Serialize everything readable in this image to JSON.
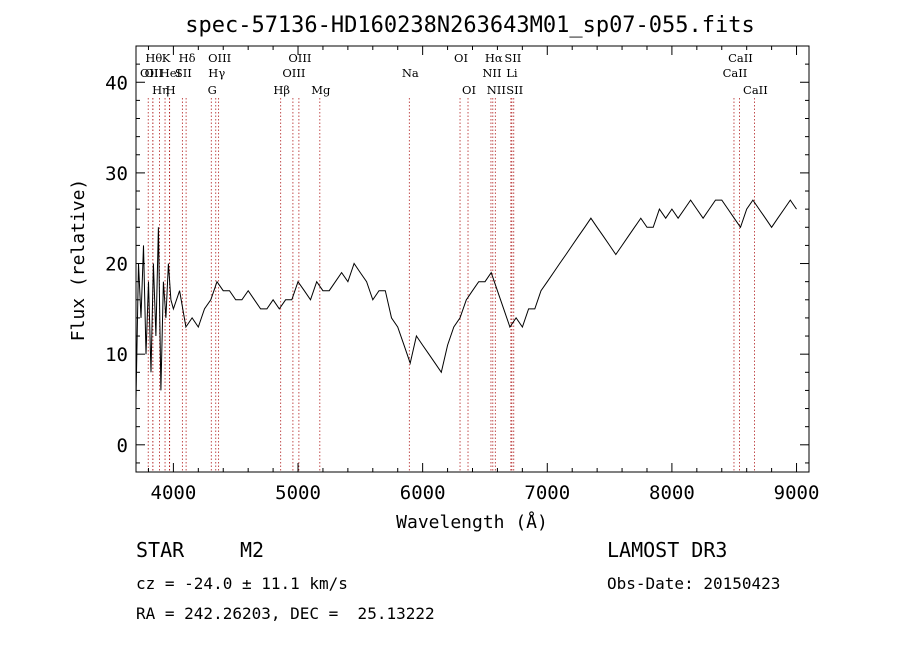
{
  "title": "spec-57136-HD160238N263643M01_sp07-055.fits",
  "info": {
    "object_class": "STAR",
    "subclass": "M2",
    "survey": "LAMOST DR3",
    "cz": "cz = -24.0 ± 11.1 km/s",
    "obs_date": "Obs-Date: 20150423",
    "coords": "RA = 242.26203, DEC =  25.13222"
  },
  "chart_data": {
    "type": "line",
    "title": "spec-57136-HD160238N263643M01_sp07-055.fits",
    "xlabel": "Wavelength (Å)",
    "ylabel": "Flux (relative)",
    "xlim": [
      3700,
      9100
    ],
    "ylim": [
      -3,
      44
    ],
    "xticks": [
      4000,
      5000,
      6000,
      7000,
      8000,
      9000
    ],
    "yticks": [
      0,
      10,
      20,
      30,
      40
    ],
    "grid": false,
    "legend": "none",
    "line_color": "#000000",
    "marker_color": "#b22222",
    "series": [
      {
        "x": [
          3700,
          3720,
          3740,
          3760,
          3780,
          3800,
          3820,
          3840,
          3860,
          3880,
          3900,
          3920,
          3940,
          3960,
          3980,
          4000,
          4050,
          4100,
          4150,
          4200,
          4250,
          4300,
          4350,
          4400,
          4450,
          4500,
          4550,
          4600,
          4650,
          4700,
          4750,
          4800,
          4850,
          4900,
          4950,
          5000,
          5050,
          5100,
          5150,
          5200,
          5250,
          5300,
          5350,
          5400,
          5450,
          5500,
          5550,
          5600,
          5650,
          5700,
          5750,
          5800,
          5850,
          5900,
          5950,
          6000,
          6050,
          6100,
          6150,
          6200,
          6250,
          6300,
          6350,
          6400,
          6450,
          6500,
          6550,
          6600,
          6650,
          6700,
          6750,
          6800,
          6850,
          6900,
          6950,
          7000,
          7050,
          7100,
          7150,
          7200,
          7250,
          7300,
          7350,
          7400,
          7450,
          7500,
          7550,
          7600,
          7650,
          7700,
          7750,
          7800,
          7850,
          7900,
          7950,
          8000,
          8050,
          8100,
          8150,
          8200,
          8250,
          8300,
          8350,
          8400,
          8450,
          8500,
          8550,
          8600,
          8650,
          8700,
          8750,
          8800,
          8850,
          8900,
          8950,
          9000
        ],
        "y": [
          5,
          20,
          14,
          22,
          10,
          18,
          8,
          20,
          12,
          24,
          6,
          18,
          14,
          20,
          16,
          15,
          17,
          13,
          14,
          13,
          15,
          16,
          18,
          17,
          17,
          16,
          16,
          17,
          16,
          15,
          15,
          16,
          15,
          16,
          16,
          18,
          17,
          16,
          18,
          17,
          17,
          18,
          19,
          18,
          20,
          19,
          18,
          16,
          17,
          17,
          14,
          13,
          11,
          9,
          12,
          11,
          10,
          9,
          8,
          11,
          13,
          14,
          16,
          17,
          18,
          18,
          19,
          17,
          15,
          13,
          14,
          13,
          15,
          15,
          17,
          18,
          19,
          20,
          21,
          22,
          23,
          24,
          25,
          24,
          23,
          22,
          21,
          22,
          23,
          24,
          25,
          24,
          24,
          26,
          25,
          26,
          25,
          26,
          27,
          26,
          25,
          26,
          27,
          27,
          26,
          25,
          24,
          26,
          27,
          26,
          25,
          24,
          25,
          26,
          27,
          26
        ]
      }
    ],
    "spectral_lines": [
      {
        "wavelength": 3798,
        "label": "OII",
        "row": 2
      },
      {
        "wavelength": 3835,
        "label": "Hθ",
        "row": 1
      },
      {
        "wavelength": 3835,
        "label": "OII",
        "row": 2
      },
      {
        "wavelength": 3889,
        "label": "Hη",
        "row": 3
      },
      {
        "wavelength": 3933,
        "label": "K",
        "row": 1
      },
      {
        "wavelength": 3968,
        "label": "HeI",
        "row": 2
      },
      {
        "wavelength": 3970,
        "label": "H",
        "row": 3
      },
      {
        "wavelength": 4072,
        "label": "SII",
        "row": 2
      },
      {
        "wavelength": 4102,
        "label": "Hδ",
        "row": 1
      },
      {
        "wavelength": 4304,
        "label": "G",
        "row": 3
      },
      {
        "wavelength": 4340,
        "label": "Hγ",
        "row": 2
      },
      {
        "wavelength": 4363,
        "label": "OIII",
        "row": 1
      },
      {
        "wavelength": 4861,
        "label": "Hβ",
        "row": 3
      },
      {
        "wavelength": 4959,
        "label": "OIII",
        "row": 2
      },
      {
        "wavelength": 5007,
        "label": "OIII",
        "row": 1
      },
      {
        "wavelength": 5175,
        "label": "Mg",
        "row": 3
      },
      {
        "wavelength": 5893,
        "label": "Na",
        "row": 2
      },
      {
        "wavelength": 6300,
        "label": "OI",
        "row": 1
      },
      {
        "wavelength": 6364,
        "label": "OI",
        "row": 3
      },
      {
        "wavelength": 6548,
        "label": "NII",
        "row": 2
      },
      {
        "wavelength": 6563,
        "label": "Hα",
        "row": 1
      },
      {
        "wavelength": 6583,
        "label": "NII",
        "row": 3
      },
      {
        "wavelength": 6708,
        "label": "Li",
        "row": 2
      },
      {
        "wavelength": 6716,
        "label": "SII",
        "row": 1
      },
      {
        "wavelength": 6731,
        "label": "SII",
        "row": 3
      },
      {
        "wavelength": 8498,
        "label": "CaII",
        "row": 2
      },
      {
        "wavelength": 8542,
        "label": "CaII",
        "row": 1
      },
      {
        "wavelength": 8662,
        "label": "CaII",
        "row": 3
      }
    ]
  }
}
